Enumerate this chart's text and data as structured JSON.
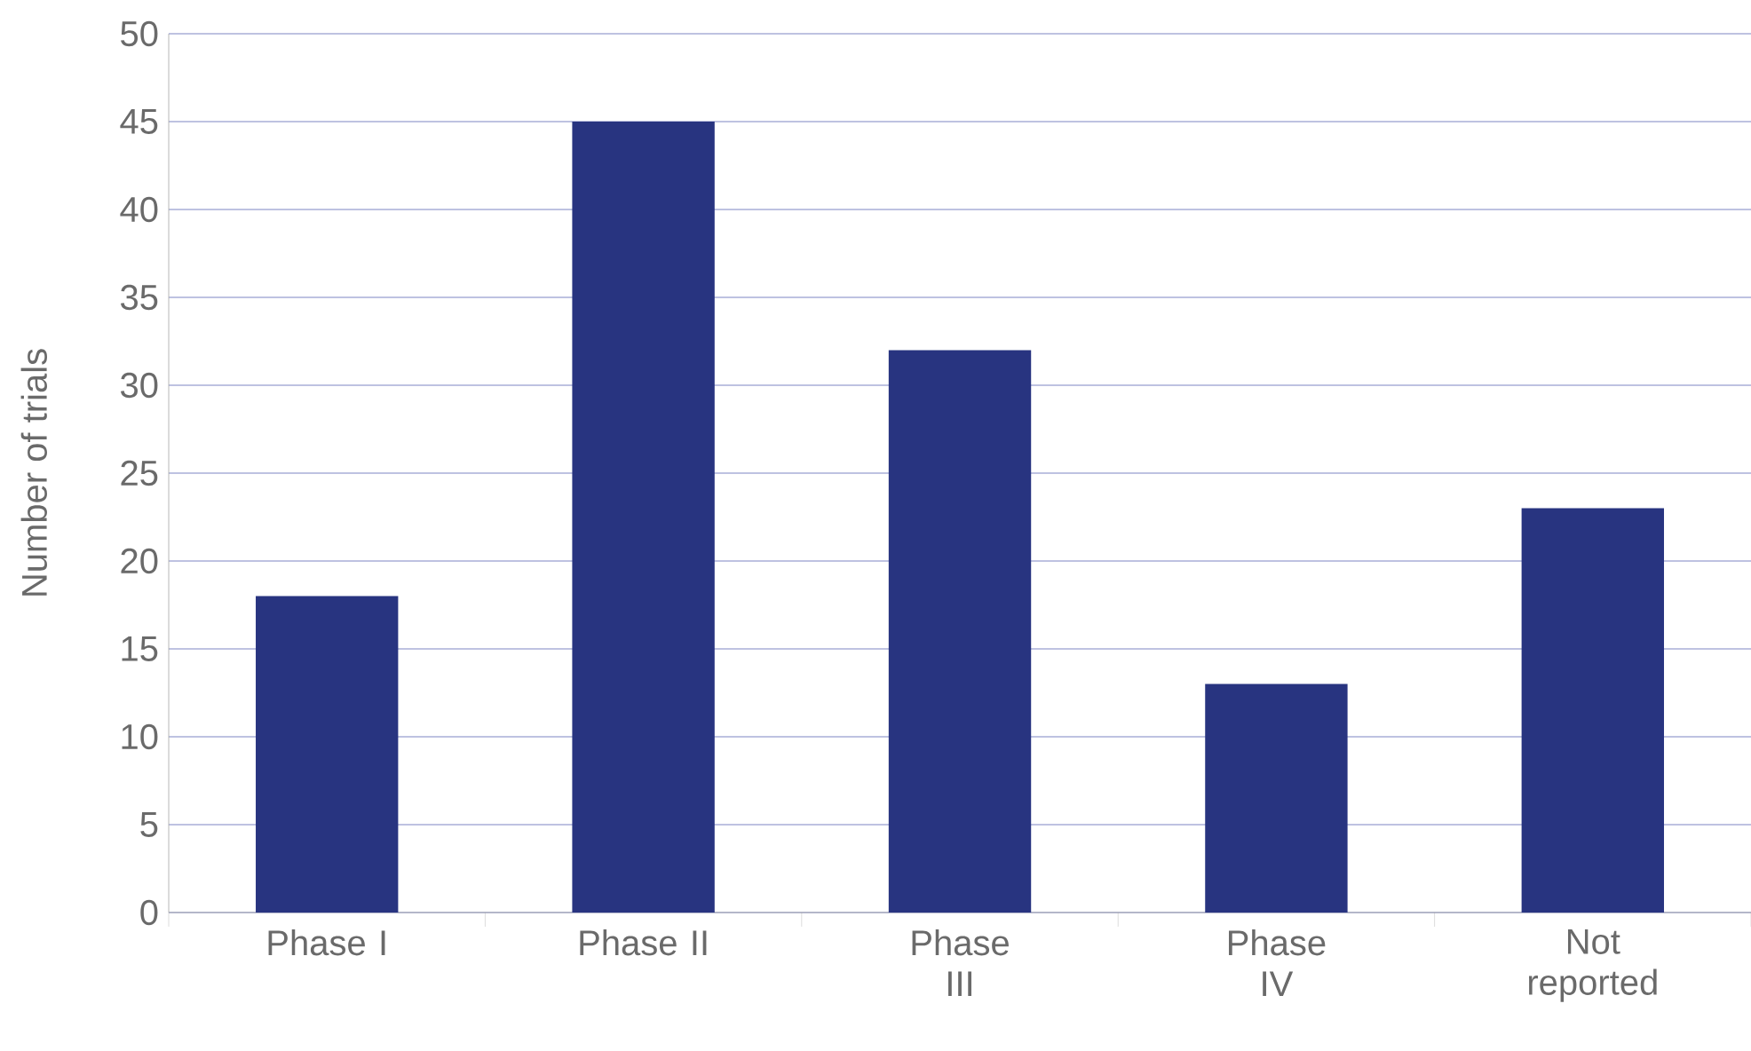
{
  "chart_data": {
    "type": "bar",
    "ylabel": "Number of trials",
    "categories": [
      "Phase I",
      "Phase II",
      "Phase III",
      "Phase IV",
      "Not reported"
    ],
    "values": [
      18,
      45,
      32,
      13,
      23
    ],
    "color": "#283480",
    "ylim": [
      0,
      50
    ],
    "yticks": [
      0,
      5,
      10,
      15,
      20,
      25,
      30,
      35,
      40,
      45,
      50
    ],
    "grid": "y"
  }
}
